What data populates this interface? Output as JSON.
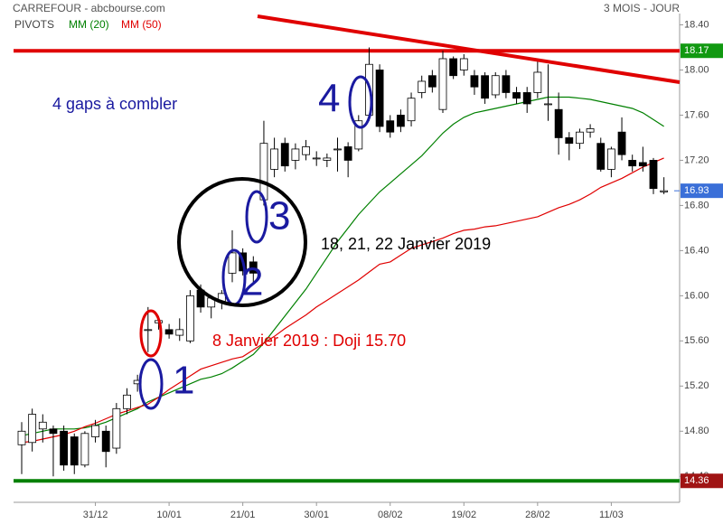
{
  "chart_data": {
    "type": "candlestick",
    "title": "CARREFOUR - abcbourse.com",
    "subtitle": "3 MOIS - JOUR",
    "categories": [
      null,
      null,
      null,
      null,
      null,
      null,
      null,
      "31/12",
      null,
      null,
      null,
      null,
      null,
      null,
      "10/01",
      null,
      null,
      null,
      null,
      null,
      null,
      "21/01",
      null,
      null,
      null,
      null,
      null,
      null,
      "30/01",
      null,
      null,
      null,
      null,
      null,
      null,
      "08/02",
      null,
      null,
      null,
      null,
      null,
      null,
      "19/02",
      null,
      null,
      null,
      null,
      null,
      null,
      "28/02",
      null,
      null,
      null,
      null,
      null,
      null,
      "11/03",
      null,
      null,
      null,
      null,
      null
    ],
    "open": [
      14.68,
      14.7,
      14.82,
      14.82,
      14.8,
      14.75,
      14.5,
      14.75,
      14.8,
      14.65,
      15.0,
      15.22,
      15.7,
      15.76,
      15.7,
      15.65,
      15.6,
      16.05,
      15.9,
      15.95,
      16.2,
      16.38,
      16.3,
      16.85,
      17.12,
      17.35,
      17.2,
      17.25,
      17.22,
      17.2,
      17.3,
      17.32,
      17.3,
      17.6,
      18.0,
      17.55,
      17.6,
      17.55,
      17.8,
      17.95,
      17.65,
      18.1,
      18.0,
      17.95,
      17.95,
      17.78,
      17.95,
      17.8,
      17.8,
      17.8,
      17.7,
      17.65,
      17.4,
      17.35,
      17.45,
      17.35,
      17.12,
      17.45,
      17.2,
      17.18,
      17.2,
      16.92
    ],
    "high": [
      14.88,
      15.0,
      14.95,
      14.85,
      14.85,
      14.78,
      14.8,
      14.9,
      14.85,
      15.05,
      15.18,
      15.3,
      15.9,
      15.82,
      15.75,
      15.8,
      16.05,
      16.1,
      16.0,
      16.05,
      16.58,
      16.42,
      16.35,
      17.55,
      17.4,
      17.4,
      17.35,
      17.38,
      17.28,
      17.26,
      17.4,
      17.36,
      17.6,
      18.2,
      18.05,
      17.6,
      17.65,
      17.8,
      17.95,
      18.0,
      18.17,
      18.12,
      18.14,
      18.0,
      17.98,
      17.98,
      18.0,
      17.85,
      17.85,
      18.1,
      18.05,
      17.8,
      17.45,
      17.48,
      17.52,
      17.4,
      17.32,
      17.58,
      17.25,
      17.32,
      17.22,
      17.05
    ],
    "low": [
      14.42,
      14.62,
      14.7,
      14.4,
      14.45,
      14.42,
      14.48,
      14.7,
      14.48,
      14.6,
      14.95,
      15.15,
      15.5,
      15.7,
      15.62,
      15.6,
      15.58,
      15.85,
      15.8,
      15.88,
      16.12,
      16.18,
      16.12,
      16.8,
      17.05,
      17.1,
      17.12,
      17.2,
      17.15,
      17.14,
      17.1,
      17.05,
      17.28,
      17.55,
      17.45,
      17.4,
      17.45,
      17.5,
      17.75,
      17.8,
      17.62,
      17.92,
      17.95,
      17.78,
      17.7,
      17.75,
      17.75,
      17.7,
      17.62,
      17.75,
      17.55,
      17.25,
      17.2,
      17.3,
      17.4,
      17.1,
      17.05,
      17.2,
      17.1,
      17.1,
      16.9,
      16.9
    ],
    "close": [
      14.8,
      14.95,
      14.88,
      14.78,
      14.5,
      14.5,
      14.78,
      14.85,
      14.62,
      15.0,
      15.12,
      15.25,
      15.7,
      15.78,
      15.66,
      15.7,
      16.0,
      15.9,
      15.98,
      16.02,
      16.38,
      16.22,
      16.2,
      17.35,
      17.3,
      17.15,
      17.3,
      17.32,
      17.22,
      17.22,
      17.3,
      17.2,
      17.55,
      18.05,
      17.5,
      17.45,
      17.5,
      17.75,
      17.9,
      17.85,
      18.1,
      17.95,
      18.1,
      17.85,
      17.75,
      17.95,
      17.8,
      17.75,
      17.7,
      17.98,
      17.7,
      17.4,
      17.35,
      17.45,
      17.48,
      17.12,
      17.3,
      17.25,
      17.15,
      17.15,
      16.95,
      16.93
    ],
    "series": [
      {
        "name": "MM (20)",
        "color": "#008000",
        "values": [
          14.76,
          14.78,
          14.8,
          14.82,
          14.82,
          14.82,
          14.83,
          14.85,
          14.88,
          14.92,
          14.96,
          15.0,
          15.06,
          15.1,
          15.14,
          15.18,
          15.22,
          15.26,
          15.28,
          15.31,
          15.36,
          15.42,
          15.48,
          15.58,
          15.7,
          15.82,
          15.94,
          16.06,
          16.2,
          16.34,
          16.48,
          16.6,
          16.72,
          16.82,
          16.92,
          17.0,
          17.08,
          17.16,
          17.24,
          17.34,
          17.44,
          17.52,
          17.58,
          17.62,
          17.64,
          17.66,
          17.68,
          17.7,
          17.72,
          17.74,
          17.76,
          17.76,
          17.76,
          17.75,
          17.74,
          17.72,
          17.7,
          17.68,
          17.66,
          17.62,
          17.56,
          17.5
        ]
      },
      {
        "name": "MM (50)",
        "color": "#e00000",
        "values": [
          14.7,
          14.71,
          14.73,
          14.75,
          14.77,
          14.8,
          14.84,
          14.87,
          14.91,
          14.95,
          14.98,
          15.01,
          15.04,
          15.1,
          15.17,
          15.23,
          15.29,
          15.35,
          15.38,
          15.41,
          15.44,
          15.46,
          15.52,
          15.58,
          15.64,
          15.71,
          15.77,
          15.83,
          15.9,
          15.96,
          16.02,
          16.08,
          16.14,
          16.21,
          16.28,
          16.3,
          16.36,
          16.42,
          16.45,
          16.48,
          16.51,
          16.55,
          16.58,
          16.59,
          16.61,
          16.62,
          16.64,
          16.66,
          16.68,
          16.7,
          16.74,
          16.78,
          16.81,
          16.85,
          16.9,
          16.96,
          17.0,
          17.04,
          17.09,
          17.14,
          17.18,
          17.22
        ]
      }
    ],
    "pivots": {
      "name": "PIVOTS",
      "values": [
        18.17,
        14.36
      ],
      "value_labels": [
        "18.17",
        "14.36"
      ],
      "colors": [
        "#e00000",
        "#008000"
      ],
      "label_colors": [
        "#119911",
        "#a01414"
      ]
    },
    "last": {
      "value": 16.93,
      "label": "16.93",
      "color": "#3a6fd8"
    },
    "ylim": [
      14.17,
      18.5
    ],
    "yticks": [
      {
        "value": 14.4,
        "label": "14.40"
      },
      {
        "value": 14.8,
        "label": "14.80"
      },
      {
        "value": 15.2,
        "label": "15.20"
      },
      {
        "value": 15.6,
        "label": "15.60"
      },
      {
        "value": 16.0,
        "label": "16.00"
      },
      {
        "value": 16.4,
        "label": "16.40"
      },
      {
        "value": 16.8,
        "label": "16.80"
      },
      {
        "value": 17.2,
        "label": "17.20"
      },
      {
        "value": 17.6,
        "label": "17.60"
      },
      {
        "value": 18.0,
        "label": "18.00"
      },
      {
        "value": 18.4,
        "label": "18.40"
      }
    ],
    "annotations": [
      {
        "text": "4 gaps à combler",
        "color": "#1a1aa0"
      },
      {
        "text": "18, 21, 22 Janvier 2019",
        "color": "#000000"
      },
      {
        "text": "8 Janvier 2019 : Doji 15.70",
        "color": "#e00000"
      },
      {
        "text": "1",
        "color": "#1a1aa0"
      },
      {
        "text": "2",
        "color": "#1a1aa0"
      },
      {
        "text": "3",
        "color": "#1a1aa0"
      },
      {
        "text": "4",
        "color": "#1a1aa0"
      }
    ]
  }
}
